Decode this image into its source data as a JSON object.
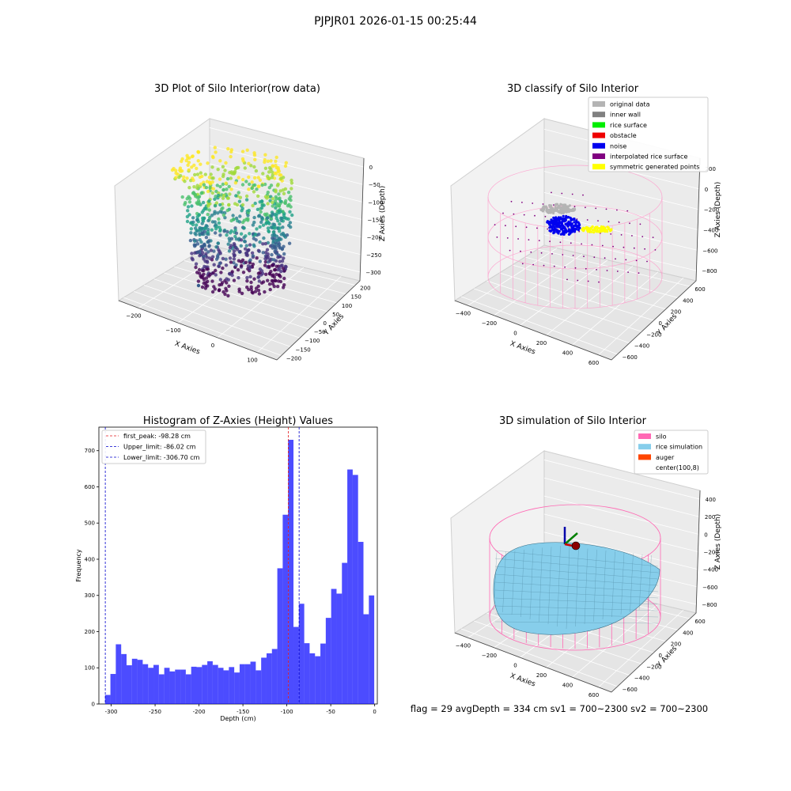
{
  "suptitle": "PJPJR01 2026-01-15 00:25:44",
  "footer": "flag = 29  avgDepth = 334 cm  sv1 = 700~2300  sv2 = 700~2300",
  "chart_data": [
    {
      "type": "scatter",
      "title": "3D Plot of Silo Interior(row data)",
      "xlabel": "X Axies",
      "ylabel": "Y Axies",
      "zlabel": "Z Axies (Depth)",
      "x_ticks": [
        "−200",
        "−100",
        "0",
        "100"
      ],
      "y_ticks": [
        "200",
        "150",
        "100",
        "50",
        "0",
        "−50",
        "−100",
        "−150",
        "−200"
      ],
      "z_ticks": [
        "0",
        "−50",
        "−100",
        "−150",
        "−200",
        "−250",
        "−300"
      ],
      "xlim": [
        -250,
        150
      ],
      "ylim": [
        -200,
        200
      ],
      "zlim": [
        -330,
        10
      ],
      "colormap": "viridis"
    },
    {
      "type": "scatter",
      "title": "3D classify of Silo Interior",
      "xlabel": "X Axies",
      "ylabel": "Y Axies",
      "zlabel": "Z Axies (Depth)",
      "x_ticks": [
        "−400",
        "−200",
        "0",
        "200",
        "400",
        "600"
      ],
      "y_ticks": [
        "600",
        "400",
        "200",
        "0",
        "−200",
        "−400",
        "−600"
      ],
      "z_ticks": [
        "200",
        "0",
        "−200",
        "−400",
        "−600",
        "−800"
      ],
      "legend_position": "top-right",
      "legend": [
        {
          "label": "original data",
          "color": "#b4b4b4"
        },
        {
          "label": "inner wall",
          "color": "#808080"
        },
        {
          "label": "rice surface",
          "color": "#00ee00"
        },
        {
          "label": "obstacle",
          "color": "#ee0000"
        },
        {
          "label": "noise",
          "color": "#0000ee"
        },
        {
          "label": "interpolated rice surface",
          "color": "#800080"
        },
        {
          "label": "symmetric generated points",
          "color": "#ffff00"
        }
      ]
    },
    {
      "type": "bar",
      "title": "Histogram of Z-Axies (Height) Values",
      "xlabel": "Depth (cm)",
      "ylabel": "Frequency",
      "xlim": [
        -314,
        3
      ],
      "ylim": [
        0,
        765
      ],
      "x_ticks": [
        -300,
        -250,
        -200,
        -150,
        -100,
        -50,
        0
      ],
      "y_ticks": [
        0,
        100,
        200,
        300,
        400,
        500,
        600,
        700
      ],
      "bin_start": -307,
      "bin_width": 6.13,
      "values": [
        25,
        83,
        165,
        138,
        107,
        125,
        122,
        110,
        100,
        108,
        82,
        100,
        90,
        95,
        95,
        82,
        103,
        102,
        108,
        118,
        108,
        100,
        93,
        102,
        87,
        110,
        110,
        117,
        93,
        128,
        140,
        152,
        375,
        523,
        730,
        213,
        277,
        168,
        140,
        132,
        167,
        238,
        318,
        305,
        390,
        648,
        633,
        448,
        248,
        300
      ],
      "bar_color": "#0000ff",
      "legend_position": "top-left",
      "lines": [
        {
          "label": "first_peak: -98.28 cm",
          "value": -98.28,
          "color": "#e41a1c"
        },
        {
          "label": "Upper_limit: -86.02 cm",
          "value": -86.02,
          "color": "#0000cc"
        },
        {
          "label": "Lower_limit: -306.70 cm",
          "value": -306.7,
          "color": "#0000cc"
        }
      ]
    },
    {
      "type": "area",
      "title": "3D simulation of Silo Interior",
      "xlabel": "X Axies",
      "ylabel": "Y Axies",
      "zlabel": "Z Axies (Depth)",
      "x_ticks": [
        "−400",
        "−200",
        "0",
        "200",
        "400",
        "600"
      ],
      "y_ticks": [
        "600",
        "400",
        "200",
        "0",
        "−200",
        "−400",
        "−600"
      ],
      "z_ticks": [
        "400",
        "200",
        "0",
        "−200",
        "−400",
        "−600",
        "−800"
      ],
      "legend_position": "top-right",
      "legend": [
        {
          "label": "silo",
          "color": "#ff69b4"
        },
        {
          "label": "rice simulation",
          "color": "#87ceeb"
        },
        {
          "label": "auger",
          "color": "#ff4500"
        },
        {
          "label": "center(100,8)",
          "color": "#ffffff"
        }
      ]
    }
  ]
}
